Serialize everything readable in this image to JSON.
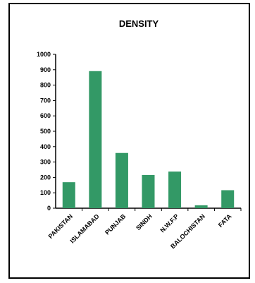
{
  "chart_data": {
    "type": "bar",
    "title": "DENSITY",
    "categories": [
      "PAKISTAN",
      "ISLAMABAD",
      "PUNJAB",
      "SINDH",
      "N.W.F.P",
      "BALOCHISTAN",
      "FATA"
    ],
    "values": [
      169,
      891,
      359,
      216,
      238,
      19,
      117
    ],
    "ylim": [
      0,
      1000
    ],
    "yticks": [
      0,
      100,
      200,
      300,
      400,
      500,
      600,
      700,
      800,
      900,
      1000
    ],
    "bar_color": "#339966",
    "grid": false,
    "legend": "none"
  }
}
